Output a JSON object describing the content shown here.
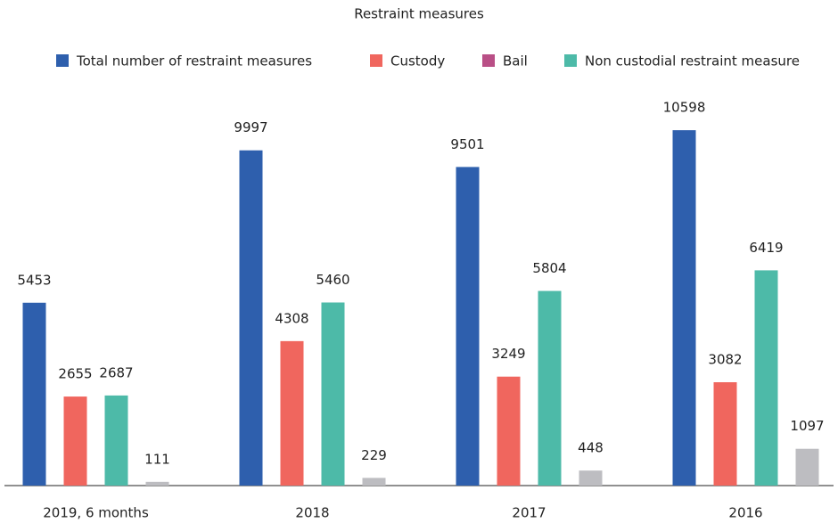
{
  "chart_data": {
    "type": "bar",
    "title": "Restraint measures",
    "categories": [
      "2019, 6 months",
      "2018",
      "2017",
      "2016"
    ],
    "series": [
      {
        "name": "Total number of restraint measures",
        "color": "#2e5fad",
        "values": [
          5453,
          9997,
          9501,
          10598
        ]
      },
      {
        "name": "Custody",
        "color": "#f0665e",
        "values": [
          2655,
          4308,
          3249,
          3082
        ]
      },
      {
        "name": "Bail",
        "color": "#bdbdc1",
        "legend_color": "#b94f86",
        "values": [
          111,
          229,
          448,
          1097
        ]
      },
      {
        "name": "Non custodial restraint measure",
        "color": "#4dbaa8",
        "values": [
          2687,
          5460,
          5804,
          6419
        ]
      }
    ],
    "ylim": [
      0,
      11000
    ],
    "grid": false
  }
}
